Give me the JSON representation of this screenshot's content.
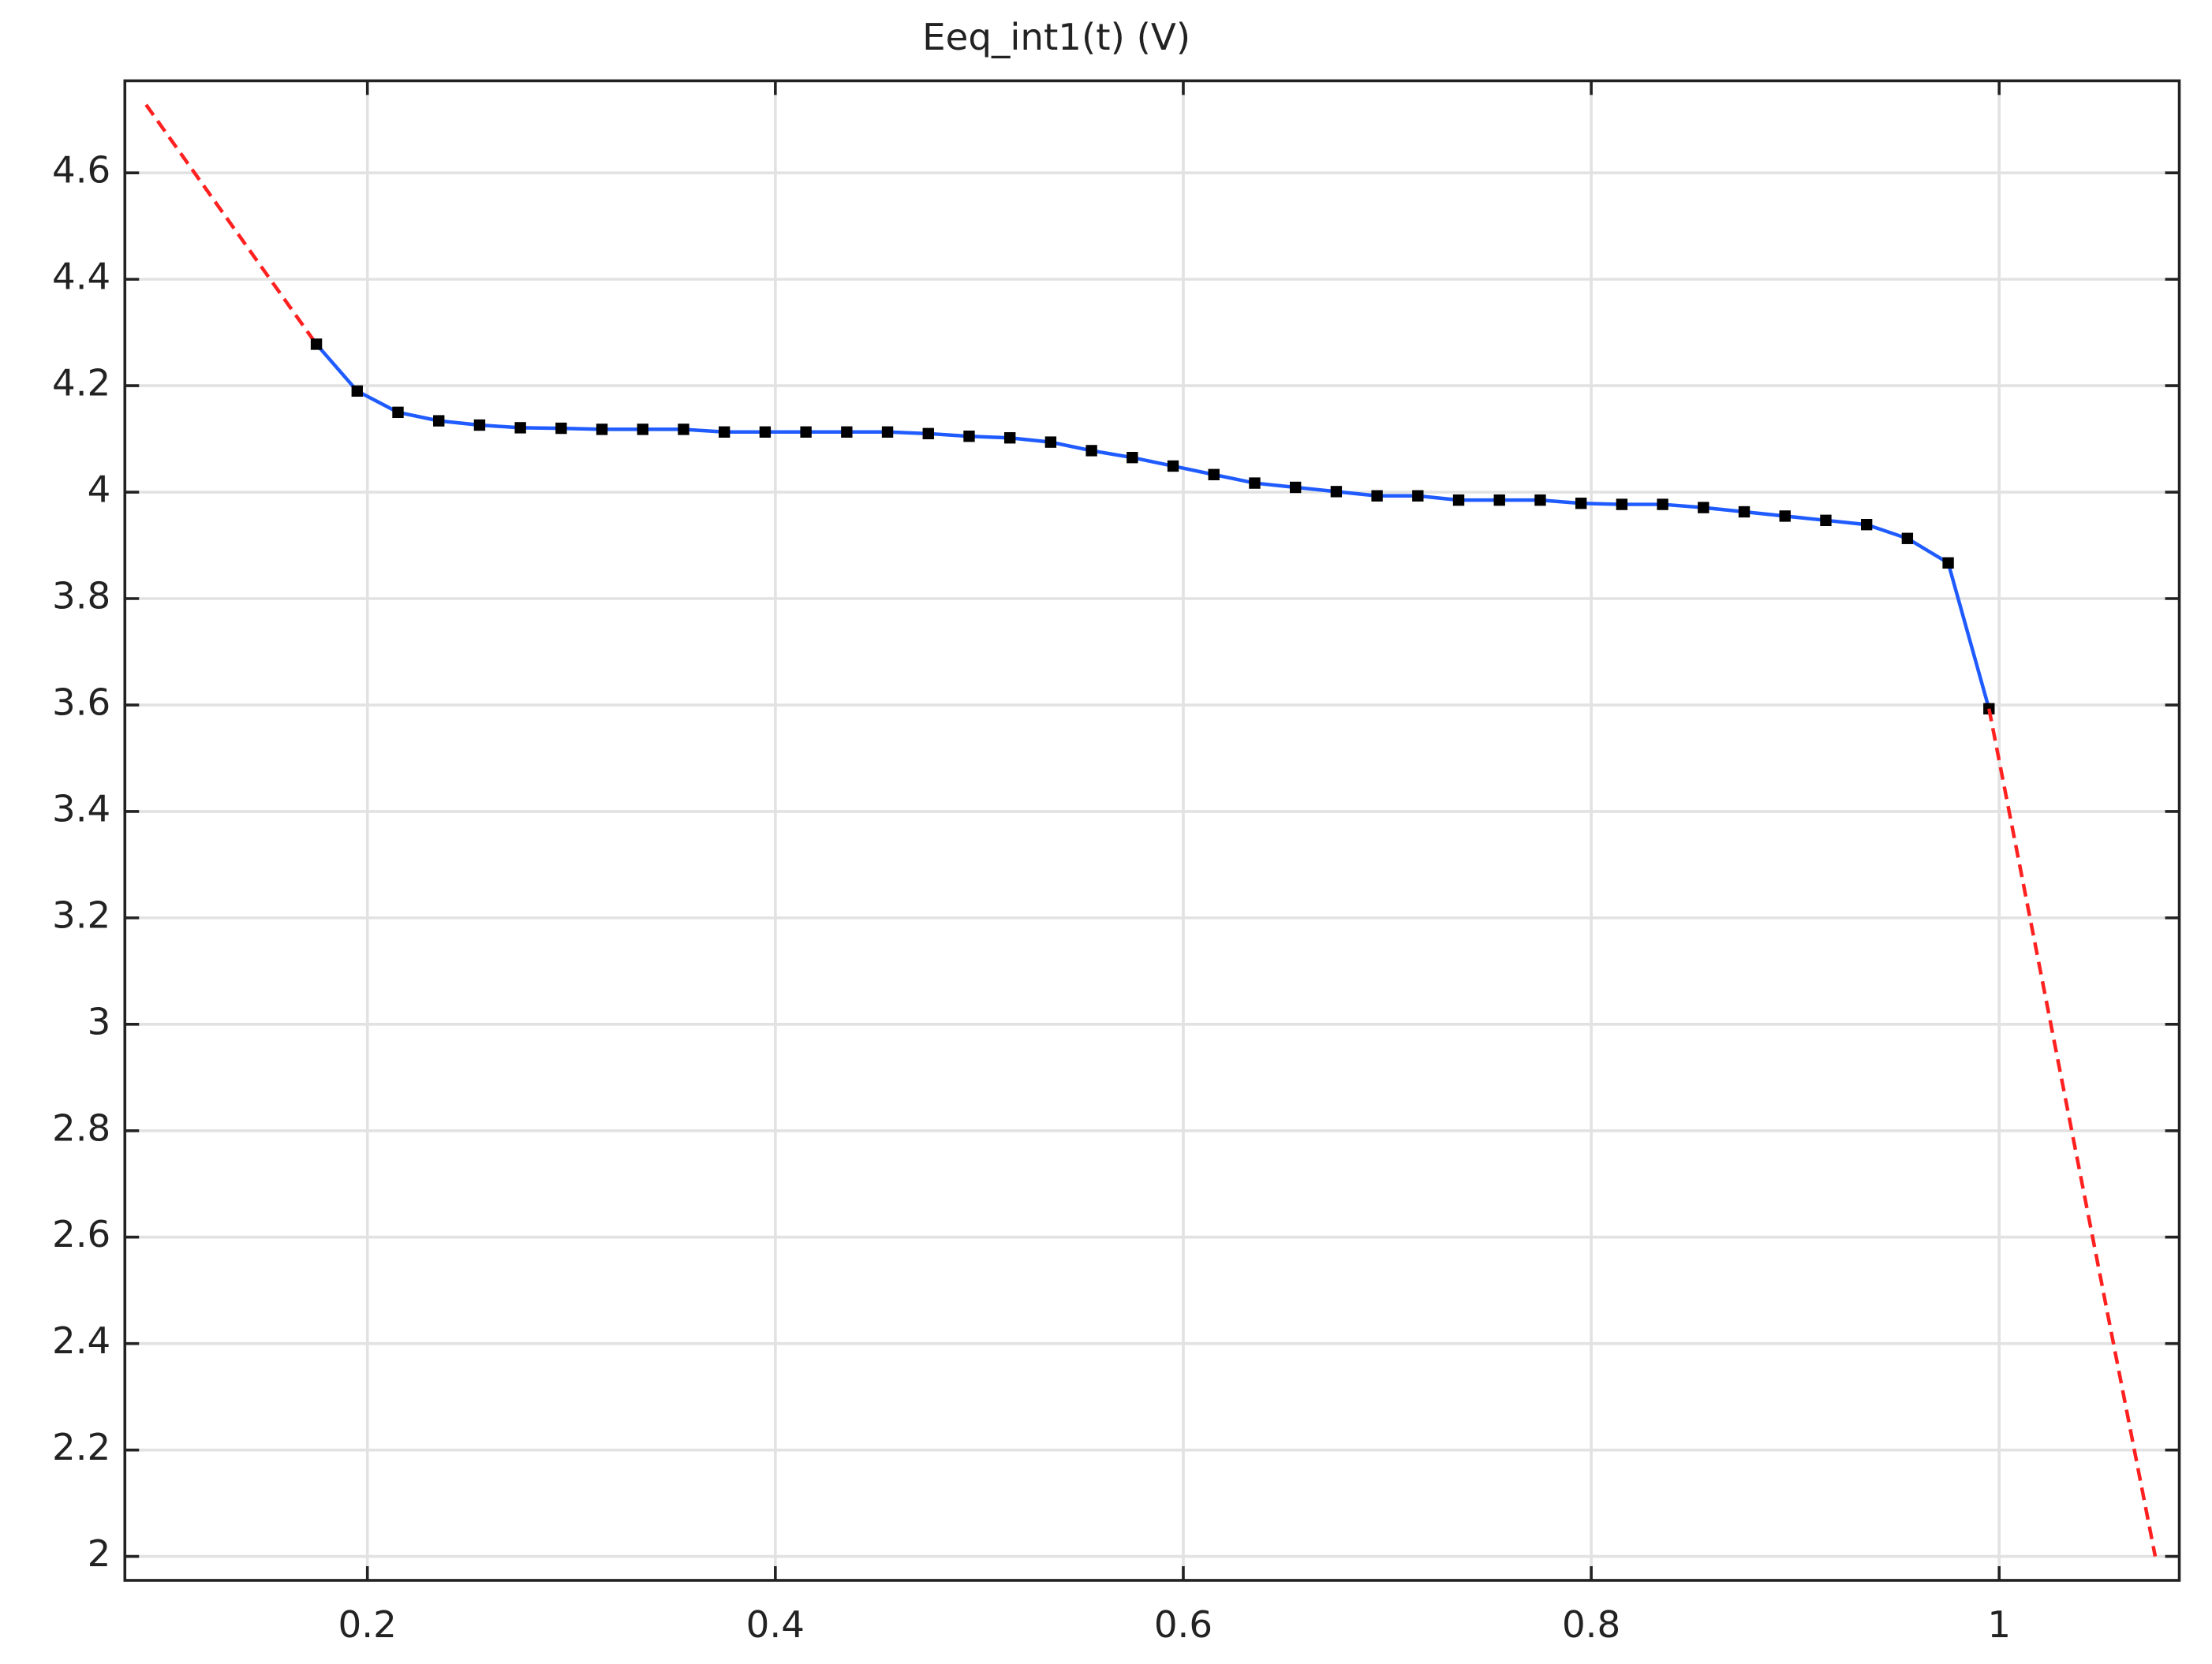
{
  "chart_data": {
    "type": "line",
    "title": "Eeq_int1(t) (V)",
    "xlim": [
      0.0811,
      1.0883
    ],
    "ylim": [
      1.955,
      4.773
    ],
    "xticks": [
      0.2,
      0.4,
      0.6,
      0.8,
      1
    ],
    "yticks": [
      2,
      2.2,
      2.4,
      2.6,
      2.8,
      3,
      3.2,
      3.4,
      3.6,
      3.8,
      4,
      4.2,
      4.4,
      4.6
    ],
    "grid": true,
    "marker_color": "#000000",
    "series": [
      {
        "color": "#ff2020",
        "dashed": true,
        "markers": false,
        "x": [
          0.0915,
          0.175
        ],
        "values": [
          4.728,
          4.278
        ]
      },
      {
        "color": "#1f5bff",
        "dashed": false,
        "markers": true,
        "x": [
          0.175,
          0.195,
          0.215,
          0.235,
          0.255,
          0.275,
          0.295,
          0.315,
          0.335,
          0.355,
          0.375,
          0.395,
          0.415,
          0.435,
          0.455,
          0.475,
          0.495,
          0.515,
          0.535,
          0.555,
          0.575,
          0.595,
          0.615,
          0.635,
          0.655,
          0.675,
          0.695,
          0.715,
          0.735,
          0.755,
          0.775,
          0.795,
          0.815,
          0.835,
          0.855,
          0.875,
          0.895,
          0.915,
          0.935,
          0.955,
          0.975,
          0.995
        ],
        "values": [
          4.278,
          4.19,
          4.15,
          4.134,
          4.126,
          4.121,
          4.12,
          4.118,
          4.118,
          4.118,
          4.113,
          4.113,
          4.113,
          4.113,
          4.113,
          4.11,
          4.105,
          4.102,
          4.094,
          4.078,
          4.065,
          4.049,
          4.033,
          4.017,
          4.009,
          4.001,
          3.993,
          3.993,
          3.985,
          3.985,
          3.985,
          3.979,
          3.977,
          3.977,
          3.971,
          3.963,
          3.955,
          3.947,
          3.939,
          3.913,
          3.867,
          3.593
        ]
      },
      {
        "color": "#ff2020",
        "dashed": true,
        "markers": false,
        "x": [
          0.995,
          1.0765
        ],
        "values": [
          3.593,
          2.0
        ]
      }
    ]
  }
}
